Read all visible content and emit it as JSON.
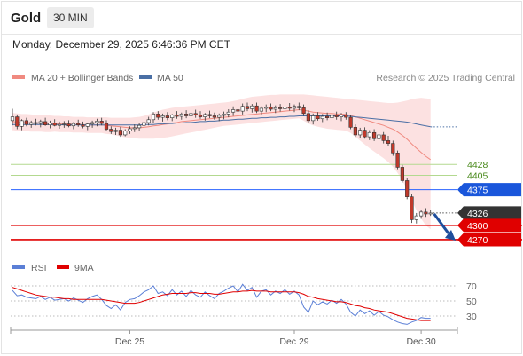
{
  "header": {
    "title": "Gold",
    "interval": "30 MIN"
  },
  "timestamp": "Monday, December 29, 2025 6:46:36 PM CET",
  "credit": "Research © 2025 Trading Central",
  "colors": {
    "up_candle": "#ffffff",
    "down_candle": "#c0392b",
    "bollinger_fill": "#fbdcdc",
    "ma20": "#f08a80",
    "ma50": "#4a6fa5",
    "support": "#e00000",
    "resistance": "#b3d98f",
    "pivot": "#2962ff",
    "last_price": "#333333",
    "rsi": "#5b7fd6",
    "rsi_ma": "#e00000"
  },
  "chart_data": [
    {
      "type": "candlestick",
      "title": "",
      "legend": [
        {
          "name": "MA 20 + Bollinger Bands",
          "color": "#f08a80"
        },
        {
          "name": "MA 50",
          "color": "#4a6fa5"
        }
      ],
      "legend_position": "top-left",
      "x_ticks": [
        "Dec 25",
        "Dec 29",
        "Dec 30"
      ],
      "ylim": [
        4255,
        4585
      ],
      "grid": false,
      "levels": [
        {
          "value": 4428,
          "label": "4428",
          "kind": "resistance"
        },
        {
          "value": 4405,
          "label": "4405",
          "kind": "resistance"
        },
        {
          "value": 4375,
          "label": "4375",
          "kind": "pivot"
        },
        {
          "value": 4326,
          "label": "4326",
          "kind": "last"
        },
        {
          "value": 4300,
          "label": "4300",
          "kind": "support"
        },
        {
          "value": 4270,
          "label": "4270",
          "kind": "support"
        }
      ],
      "ohlc": [
        [
          4520,
          4545,
          4510,
          4528
        ],
        [
          4528,
          4533,
          4502,
          4508
        ],
        [
          4508,
          4523,
          4500,
          4520
        ],
        [
          4520,
          4526,
          4508,
          4512
        ],
        [
          4512,
          4520,
          4505,
          4516
        ],
        [
          4516,
          4524,
          4510,
          4514
        ],
        [
          4514,
          4522,
          4506,
          4518
        ],
        [
          4518,
          4526,
          4509,
          4511
        ],
        [
          4511,
          4520,
          4504,
          4515
        ],
        [
          4515,
          4523,
          4508,
          4510
        ],
        [
          4510,
          4518,
          4503,
          4512
        ],
        [
          4512,
          4519,
          4505,
          4513
        ],
        [
          4513,
          4521,
          4506,
          4509
        ],
        [
          4509,
          4517,
          4502,
          4514
        ],
        [
          4514,
          4522,
          4507,
          4511
        ],
        [
          4511,
          4518,
          4504,
          4508
        ],
        [
          4508,
          4516,
          4500,
          4513
        ],
        [
          4513,
          4520,
          4505,
          4516
        ],
        [
          4516,
          4524,
          4508,
          4519
        ],
        [
          4519,
          4526,
          4510,
          4514
        ],
        [
          4514,
          4521,
          4498,
          4502
        ],
        [
          4502,
          4508,
          4492,
          4497
        ],
        [
          4497,
          4505,
          4490,
          4500
        ],
        [
          4500,
          4507,
          4486,
          4490
        ],
        [
          4490,
          4502,
          4487,
          4498
        ],
        [
          4498,
          4508,
          4492,
          4503
        ],
        [
          4503,
          4512,
          4496,
          4505
        ],
        [
          4505,
          4515,
          4499,
          4510
        ],
        [
          4510,
          4520,
          4504,
          4516
        ],
        [
          4516,
          4528,
          4510,
          4522
        ],
        [
          4522,
          4538,
          4516,
          4534
        ],
        [
          4534,
          4540,
          4522,
          4527
        ],
        [
          4527,
          4535,
          4518,
          4530
        ],
        [
          4530,
          4538,
          4521,
          4526
        ],
        [
          4526,
          4534,
          4519,
          4532
        ],
        [
          4532,
          4540,
          4524,
          4529
        ],
        [
          4529,
          4537,
          4522,
          4534
        ],
        [
          4534,
          4542,
          4525,
          4530
        ],
        [
          4530,
          4538,
          4523,
          4535
        ],
        [
          4535,
          4543,
          4526,
          4532
        ],
        [
          4532,
          4540,
          4524,
          4528
        ],
        [
          4528,
          4536,
          4520,
          4533
        ],
        [
          4533,
          4541,
          4525,
          4530
        ],
        [
          4530,
          4537,
          4522,
          4527
        ],
        [
          4527,
          4535,
          4519,
          4531
        ],
        [
          4531,
          4539,
          4523,
          4534
        ],
        [
          4534,
          4544,
          4527,
          4538
        ],
        [
          4538,
          4550,
          4530,
          4543
        ],
        [
          4543,
          4552,
          4534,
          4540
        ],
        [
          4540,
          4556,
          4533,
          4550
        ],
        [
          4550,
          4558,
          4540,
          4545
        ],
        [
          4545,
          4555,
          4537,
          4551
        ],
        [
          4551,
          4558,
          4536,
          4540
        ],
        [
          4540,
          4550,
          4532,
          4546
        ],
        [
          4546,
          4554,
          4538,
          4548
        ],
        [
          4548,
          4556,
          4540,
          4544
        ],
        [
          4544,
          4552,
          4536,
          4547
        ],
        [
          4547,
          4555,
          4539,
          4545
        ],
        [
          4545,
          4553,
          4537,
          4549
        ],
        [
          4549,
          4557,
          4541,
          4546
        ],
        [
          4546,
          4554,
          4538,
          4550
        ],
        [
          4550,
          4558,
          4542,
          4547
        ],
        [
          4547,
          4554,
          4530,
          4535
        ],
        [
          4535,
          4542,
          4515,
          4520
        ],
        [
          4520,
          4535,
          4512,
          4530
        ],
        [
          4530,
          4538,
          4520,
          4524
        ],
        [
          4524,
          4534,
          4517,
          4529
        ],
        [
          4529,
          4537,
          4521,
          4526
        ],
        [
          4526,
          4535,
          4518,
          4531
        ],
        [
          4531,
          4539,
          4522,
          4528
        ],
        [
          4528,
          4536,
          4519,
          4532
        ],
        [
          4532,
          4538,
          4522,
          4527
        ],
        [
          4527,
          4532,
          4502,
          4506
        ],
        [
          4506,
          4512,
          4486,
          4490
        ],
        [
          4490,
          4505,
          4484,
          4500
        ],
        [
          4500,
          4506,
          4482,
          4486
        ],
        [
          4486,
          4500,
          4479,
          4495
        ],
        [
          4495,
          4502,
          4477,
          4482
        ],
        [
          4482,
          4494,
          4474,
          4490
        ],
        [
          4490,
          4496,
          4472,
          4478
        ],
        [
          4478,
          4488,
          4466,
          4472
        ],
        [
          4472,
          4478,
          4446,
          4452
        ],
        [
          4452,
          4457,
          4418,
          4422
        ],
        [
          4422,
          4427,
          4390,
          4394
        ],
        [
          4394,
          4400,
          4355,
          4360
        ],
        [
          4360,
          4366,
          4305,
          4312
        ],
        [
          4312,
          4326,
          4304,
          4320
        ],
        [
          4320,
          4333,
          4314,
          4328
        ],
        [
          4328,
          4336,
          4318,
          4324
        ],
        [
          4324,
          4332,
          4320,
          4326
        ]
      ],
      "ma20": [
        4518,
        4517,
        4516,
        4516,
        4515,
        4515,
        4515,
        4514,
        4514,
        4514,
        4513,
        4513,
        4513,
        4512,
        4512,
        4512,
        4511,
        4511,
        4511,
        4511,
        4510,
        4509,
        4508,
        4507,
        4506,
        4505,
        4505,
        4505,
        4506,
        4507,
        4509,
        4510,
        4512,
        4513,
        4515,
        4516,
        4518,
        4519,
        4520,
        4521,
        4522,
        4523,
        4524,
        4525,
        4526,
        4527,
        4528,
        4529,
        4530,
        4531,
        4532,
        4533,
        4534,
        4535,
        4536,
        4537,
        4538,
        4539,
        4540,
        4541,
        4542,
        4543,
        4542,
        4540,
        4538,
        4537,
        4536,
        4535,
        4535,
        4534,
        4534,
        4533,
        4531,
        4528,
        4525,
        4522,
        4519,
        4516,
        4513,
        4510,
        4506,
        4502,
        4496,
        4489,
        4481,
        4471,
        4462,
        4453,
        4445,
        4438
      ],
      "bb_upper": [
        4536,
        4535,
        4534,
        4534,
        4533,
        4532,
        4532,
        4531,
        4531,
        4530,
        4530,
        4529,
        4529,
        4528,
        4528,
        4528,
        4527,
        4527,
        4527,
        4527,
        4527,
        4526,
        4526,
        4526,
        4526,
        4526,
        4527,
        4528,
        4530,
        4533,
        4537,
        4540,
        4543,
        4545,
        4547,
        4548,
        4549,
        4550,
        4551,
        4552,
        4553,
        4554,
        4555,
        4556,
        4557,
        4558,
        4559,
        4561,
        4563,
        4566,
        4568,
        4570,
        4571,
        4572,
        4573,
        4574,
        4574,
        4575,
        4575,
        4575,
        4575,
        4575,
        4575,
        4574,
        4573,
        4572,
        4571,
        4570,
        4569,
        4568,
        4567,
        4566,
        4565,
        4564,
        4563,
        4562,
        4561,
        4560,
        4559,
        4558,
        4557,
        4557,
        4558,
        4560,
        4562,
        4565,
        4567,
        4568,
        4567,
        4566
      ],
      "bb_lower": [
        4500,
        4499,
        4498,
        4498,
        4497,
        4497,
        4497,
        4496,
        4496,
        4497,
        4496,
        4496,
        4496,
        4495,
        4495,
        4495,
        4494,
        4494,
        4494,
        4494,
        4492,
        4491,
        4489,
        4487,
        4485,
        4484,
        4483,
        4482,
        4482,
        4482,
        4482,
        4483,
        4484,
        4485,
        4487,
        4489,
        4491,
        4493,
        4495,
        4497,
        4499,
        4501,
        4503,
        4505,
        4507,
        4509,
        4510,
        4511,
        4512,
        4513,
        4514,
        4515,
        4516,
        4517,
        4518,
        4519,
        4520,
        4521,
        4522,
        4523,
        4524,
        4525,
        4520,
        4514,
        4510,
        4507,
        4505,
        4503,
        4502,
        4501,
        4500,
        4499,
        4494,
        4486,
        4478,
        4470,
        4462,
        4455,
        4448,
        4441,
        4433,
        4423,
        4410,
        4394,
        4376,
        4352,
        4332,
        4314,
        4300,
        4292
      ],
      "ma50": [
        4512,
        4512,
        4512,
        4512,
        4512,
        4512,
        4512,
        4512,
        4512,
        4512,
        4512,
        4511,
        4511,
        4511,
        4511,
        4511,
        4511,
        4511,
        4511,
        4511,
        4511,
        4511,
        4511,
        4511,
        4511,
        4511,
        4511,
        4511,
        4512,
        4512,
        4512,
        4513,
        4513,
        4514,
        4514,
        4515,
        4515,
        4516,
        4516,
        4517,
        4518,
        4518,
        4519,
        4519,
        4520,
        4521,
        4521,
        4522,
        4523,
        4523,
        4524,
        4525,
        4525,
        4526,
        4526,
        4527,
        4527,
        4528,
        4528,
        4529,
        4529,
        4530,
        4530,
        4530,
        4530,
        4530,
        4530,
        4530,
        4530,
        4530,
        4530,
        4530,
        4529,
        4528,
        4527,
        4526,
        4525,
        4524,
        4523,
        4522,
        4521,
        4520,
        4519,
        4518,
        4517,
        4515,
        4513,
        4511,
        4509,
        4507
      ],
      "ma50_projection": [
        4507,
        4507
      ],
      "forecast": {
        "from": 4326,
        "to": 4270
      }
    },
    {
      "type": "line",
      "title": "",
      "legend": [
        {
          "name": "RSI",
          "color": "#5b7fd6"
        },
        {
          "name": "9MA",
          "color": "#e00000"
        }
      ],
      "y_ticks": [
        "70",
        "50",
        "30"
      ],
      "ylim": [
        15,
        85
      ],
      "series": [
        {
          "name": "RSI",
          "values": [
            64,
            57,
            58,
            55,
            54,
            53,
            56,
            52,
            55,
            51,
            52,
            53,
            50,
            54,
            51,
            48,
            53,
            56,
            58,
            52,
            44,
            40,
            45,
            38,
            48,
            52,
            53,
            57,
            62,
            65,
            70,
            60,
            62,
            57,
            65,
            58,
            63,
            56,
            64,
            58,
            55,
            62,
            57,
            53,
            60,
            63,
            67,
            70,
            62,
            72,
            64,
            68,
            55,
            63,
            65,
            58,
            63,
            60,
            65,
            59,
            63,
            58,
            42,
            35,
            50,
            45,
            49,
            46,
            51,
            47,
            52,
            46,
            35,
            30,
            38,
            33,
            37,
            31,
            36,
            31,
            29,
            25,
            22,
            20,
            19,
            22,
            24,
            28,
            27,
            27
          ]
        },
        {
          "name": "9MA",
          "values": [
            68,
            66,
            64,
            62,
            60,
            58,
            57,
            56,
            55,
            55,
            54,
            53,
            53,
            52,
            52,
            52,
            52,
            52,
            52,
            52,
            51,
            50,
            49,
            48,
            47,
            47,
            47,
            48,
            50,
            52,
            54,
            56,
            58,
            59,
            60,
            60,
            60,
            60,
            61,
            61,
            60,
            60,
            60,
            59,
            59,
            60,
            61,
            62,
            62,
            63,
            63,
            64,
            63,
            63,
            63,
            62,
            62,
            62,
            62,
            62,
            62,
            61,
            59,
            56,
            55,
            53,
            52,
            51,
            50,
            49,
            49,
            48,
            46,
            44,
            43,
            41,
            40,
            38,
            37,
            36,
            35,
            33,
            31,
            29,
            27,
            26,
            25,
            24,
            24,
            24
          ]
        }
      ]
    }
  ]
}
